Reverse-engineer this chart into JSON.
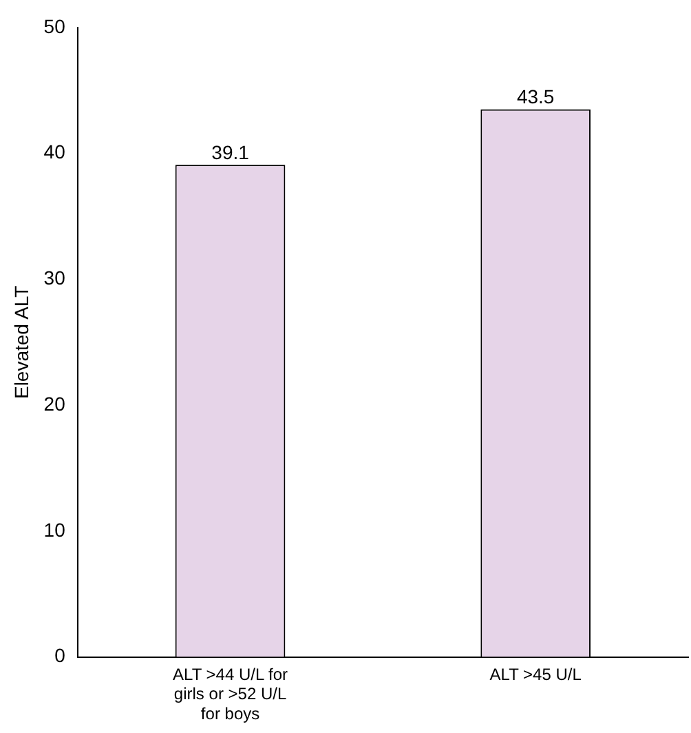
{
  "chart_data": {
    "type": "bar",
    "ylabel": "Elevated ALT",
    "categories": [
      "ALT >44 U/L for girls or >52 U/L for boys",
      "ALT >45 U/L"
    ],
    "values": [
      39.1,
      43.5
    ],
    "color": "#e6d4e8",
    "ylim": [
      0,
      50
    ],
    "yticks": [
      0,
      10,
      20,
      30,
      40,
      50
    ],
    "grid": false,
    "data_labels": true,
    "legend": false
  }
}
